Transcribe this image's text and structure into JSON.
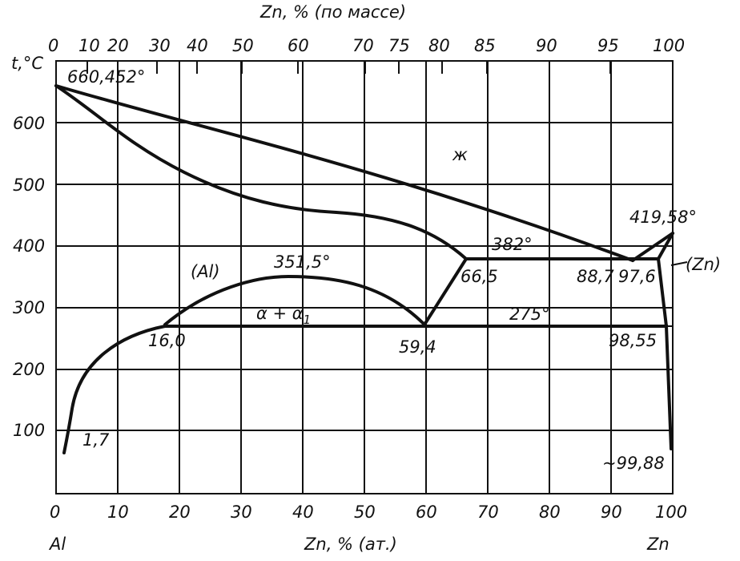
{
  "diagram": {
    "top_axis_title": "Zn, % (по массе)",
    "bottom_axis_title": "Zn, % (ат.)",
    "y_axis_title": "t,°C",
    "left_component": "Al",
    "right_component": "Zn",
    "top_ticks": [
      "0",
      "10",
      "20",
      "30",
      "40",
      "50",
      "60",
      "70",
      "75",
      "80",
      "85",
      "90",
      "95",
      "100"
    ],
    "bottom_ticks": [
      "0",
      "10",
      "20",
      "30",
      "40",
      "50",
      "60",
      "70",
      "80",
      "90",
      "100"
    ],
    "y_ticks": [
      "100",
      "200",
      "300",
      "400",
      "500",
      "600"
    ],
    "labels": {
      "al_melt": "660,452°",
      "liquid": "ж",
      "zn_melt": "419,58°",
      "eutectic_temp": "382°",
      "al_phase": "(Al)",
      "zn_phase": "(Zn)",
      "critical": "351,5°",
      "alpha": "α + α",
      "alpha_sub": "1",
      "eutectoid_temp": "275°",
      "c_665": "66,5",
      "c_887": "88,7",
      "c_976": "97,6",
      "c_160": "16,0",
      "c_594": "59,4",
      "c_9855": "98,55",
      "c_17": "1,7",
      "c_9988": "~99,88"
    }
  }
}
